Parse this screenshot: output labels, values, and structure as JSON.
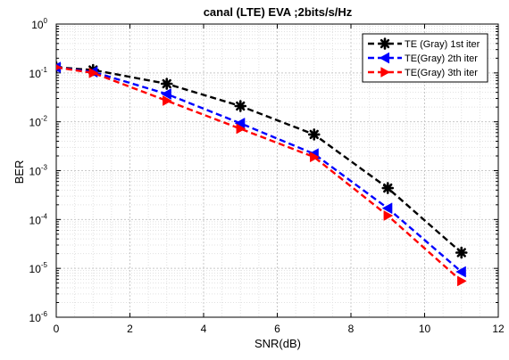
{
  "chart_data": {
    "type": "line",
    "title": "canal (LTE) EVA ;2bits/s/Hz",
    "xlabel": "SNR(dB)",
    "ylabel": "BER",
    "xlim": [
      0,
      12
    ],
    "ylim": [
      1e-06,
      1
    ],
    "yscale": "log",
    "grid": true,
    "legend_position": "top-right",
    "x_ticks": [
      0,
      2,
      4,
      6,
      8,
      10,
      12
    ],
    "y_ticks": [
      {
        "value": 1,
        "base": "10",
        "exp": "0"
      },
      {
        "value": 0.1,
        "base": "10",
        "exp": "-1"
      },
      {
        "value": 0.01,
        "base": "10",
        "exp": "-2"
      },
      {
        "value": 0.001,
        "base": "10",
        "exp": "-3"
      },
      {
        "value": 0.0001,
        "base": "10",
        "exp": "-4"
      },
      {
        "value": 1e-05,
        "base": "10",
        "exp": "-5"
      },
      {
        "value": 1e-06,
        "base": "10",
        "exp": "-6"
      }
    ],
    "x": [
      0,
      1,
      3,
      5,
      7,
      9,
      11
    ],
    "series": [
      {
        "name": "TE (Gray) 1st iter",
        "color": "#000000",
        "marker": "asterisk",
        "values": [
          0.13,
          0.115,
          0.06,
          0.021,
          0.0055,
          0.00044,
          2.1e-05
        ]
      },
      {
        "name": "TE(Gray) 2th iter",
        "color": "#0000ff",
        "marker": "triangle-left",
        "values": [
          0.13,
          0.105,
          0.037,
          0.0093,
          0.0022,
          0.00017,
          8.5e-06
        ]
      },
      {
        "name": "TE(Gray) 3th iter",
        "color": "#ff0000",
        "marker": "triangle-right",
        "values": [
          0.13,
          0.1,
          0.027,
          0.0072,
          0.0019,
          0.00012,
          5.5e-06
        ]
      }
    ]
  }
}
